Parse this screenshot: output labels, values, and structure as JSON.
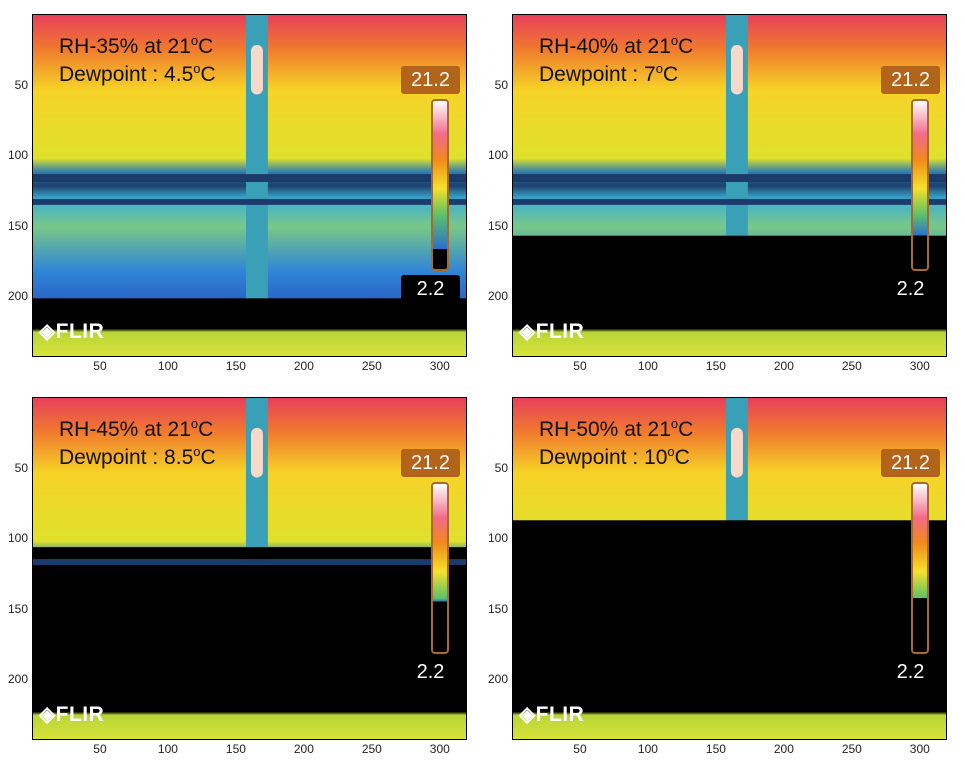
{
  "panels": [
    {
      "rh_label": "RH-35% at 21",
      "dew_label": "Dewpoint : 4.5",
      "condensation": 0.0,
      "scale_fill": 0.12
    },
    {
      "rh_label": "RH-40% at 21",
      "dew_label": "Dewpoint : 7",
      "condensation": 0.35,
      "scale_fill": 0.2
    },
    {
      "rh_label": "RH-45% at 21",
      "dew_label": "Dewpoint : 8.5",
      "condensation": 0.65,
      "scale_fill": 0.3
    },
    {
      "rh_label": "RH-50% at 21",
      "dew_label": "Dewpoint : 10",
      "condensation": 0.9,
      "scale_fill": 0.42
    }
  ],
  "degree_sup": "o",
  "unit_c": "C",
  "scale_max": "21.2",
  "scale_min": "2.2",
  "logo_text": "FLIR",
  "logo_icon": "flir-diamond-icon",
  "y_ticks": [
    "50",
    "100",
    "150",
    "200"
  ],
  "x_ticks": [
    "50",
    "100",
    "150",
    "200",
    "250",
    "300"
  ]
}
